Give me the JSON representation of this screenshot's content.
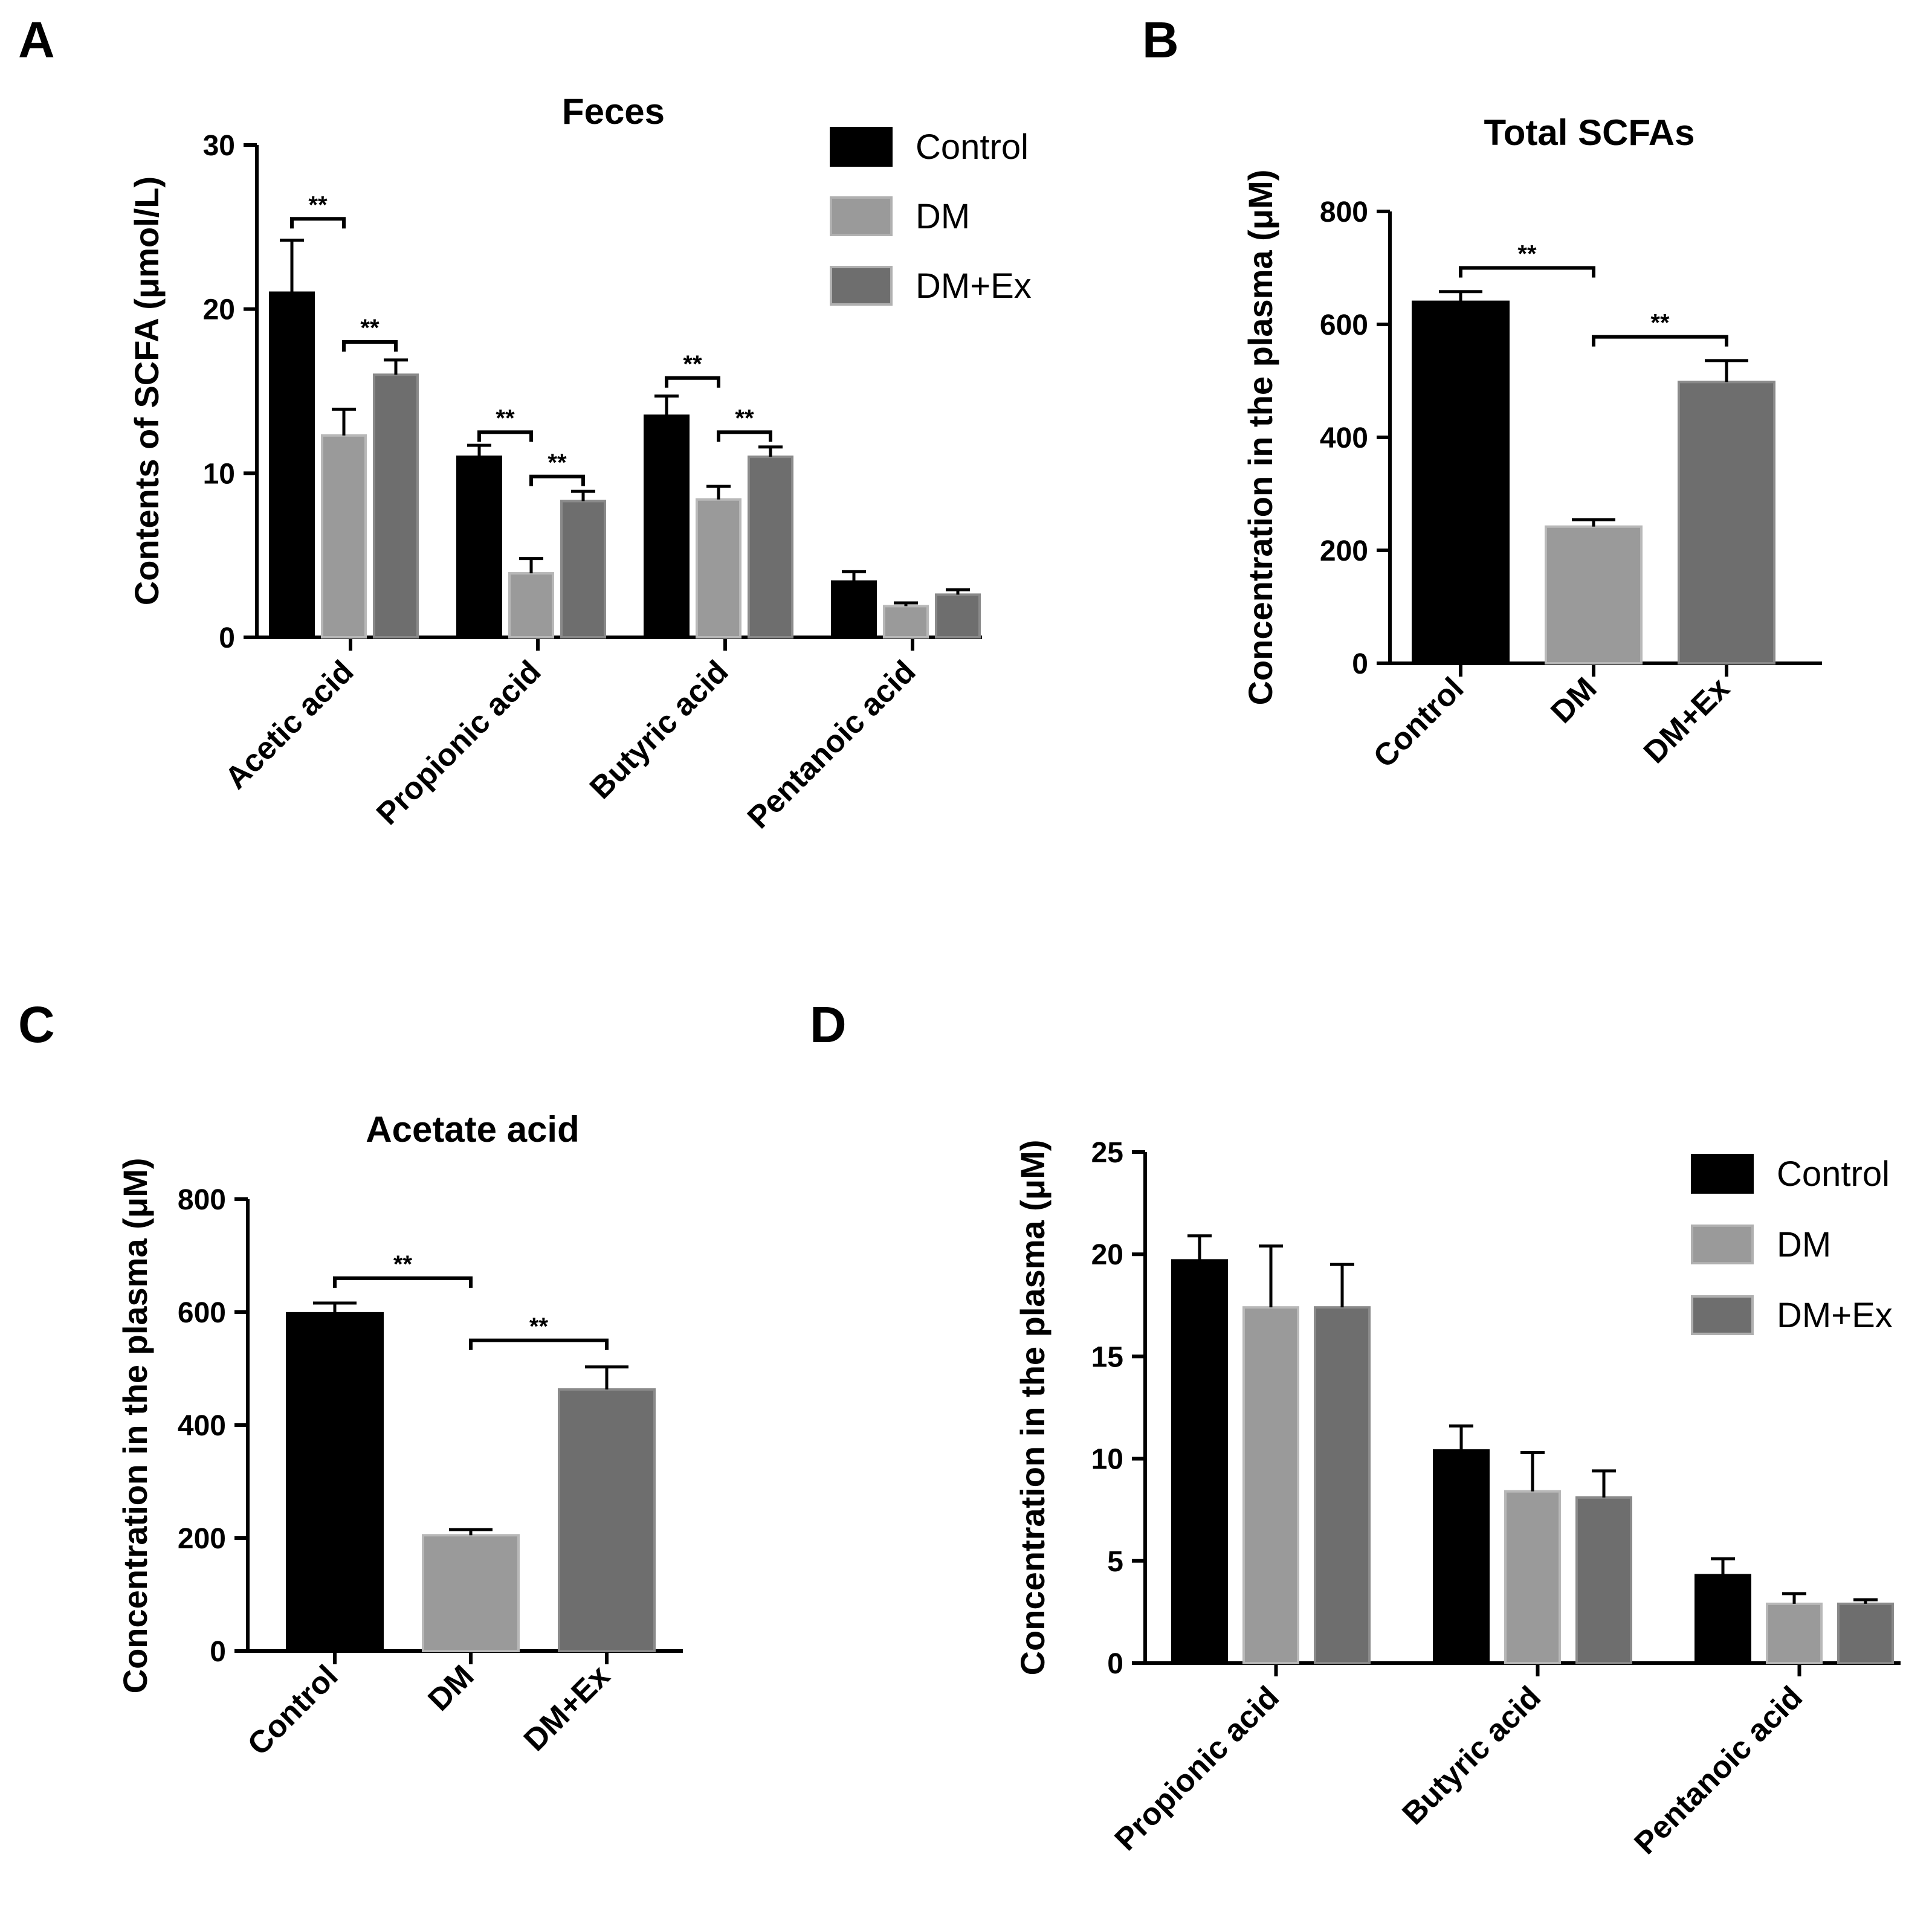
{
  "colors": {
    "Control": "#000000",
    "DM": "#9a9a9a",
    "DM+Ex": "#6e6e6e"
  },
  "legend": [
    "Control",
    "DM",
    "DM+Ex"
  ],
  "chart_data": [
    {
      "panel": "A",
      "type": "bar",
      "title": "Feces",
      "ylabel": "Contents of SCFA (μmol/L)",
      "xlabel": "",
      "ylim": [
        0,
        30
      ],
      "yticks": [
        0,
        10,
        20,
        30
      ],
      "categories": [
        "Acetic acid",
        "Propionic acid",
        "Butyric acid",
        "Pentanoic acid"
      ],
      "legend_position": "top-right",
      "series": [
        {
          "name": "Control",
          "values": [
            21.0,
            11.0,
            13.5,
            3.4
          ],
          "errors": [
            3.2,
            0.7,
            1.2,
            0.6
          ]
        },
        {
          "name": "DM",
          "values": [
            12.3,
            3.9,
            8.4,
            1.9
          ],
          "errors": [
            1.6,
            0.9,
            0.8,
            0.2
          ]
        },
        {
          "name": "DM+Ex",
          "values": [
            16.0,
            8.3,
            11.0,
            2.6
          ],
          "errors": [
            0.9,
            0.6,
            0.6,
            0.3
          ]
        }
      ],
      "significance": [
        {
          "category": 0,
          "from": 0,
          "to": 1,
          "y": 25.5,
          "label": "**"
        },
        {
          "category": 0,
          "from": 1,
          "to": 2,
          "y": 18.0,
          "label": "**"
        },
        {
          "category": 1,
          "from": 0,
          "to": 1,
          "y": 12.5,
          "label": "**"
        },
        {
          "category": 1,
          "from": 1,
          "to": 2,
          "y": 9.8,
          "label": "**"
        },
        {
          "category": 2,
          "from": 0,
          "to": 1,
          "y": 15.8,
          "label": "**"
        },
        {
          "category": 2,
          "from": 1,
          "to": 2,
          "y": 12.5,
          "label": "**"
        }
      ]
    },
    {
      "panel": "B",
      "type": "bar",
      "title": "Total SCFAs",
      "ylabel": "Concentration in the plasma (μM)",
      "xlabel": "",
      "ylim": [
        0,
        800
      ],
      "yticks": [
        0,
        200,
        400,
        600,
        800
      ],
      "categories": [
        "Control",
        "DM",
        "DM+Ex"
      ],
      "series": [
        {
          "name": "",
          "values": [
            640,
            242,
            498
          ],
          "errors": [
            18,
            12,
            38
          ]
        }
      ],
      "significance": [
        {
          "from": 0,
          "to": 1,
          "y": 700,
          "label": "**"
        },
        {
          "from": 1,
          "to": 2,
          "y": 578,
          "label": "**"
        }
      ]
    },
    {
      "panel": "C",
      "type": "bar",
      "title": "Acetate acid",
      "ylabel": "Concentration in the plasma (μM)",
      "xlabel": "",
      "ylim": [
        0,
        800
      ],
      "yticks": [
        0,
        200,
        400,
        600,
        800
      ],
      "categories": [
        "Control",
        "DM",
        "DM+Ex"
      ],
      "series": [
        {
          "name": "",
          "values": [
            598,
            205,
            463
          ],
          "errors": [
            18,
            10,
            40
          ]
        }
      ],
      "significance": [
        {
          "from": 0,
          "to": 1,
          "y": 660,
          "label": "**"
        },
        {
          "from": 1,
          "to": 2,
          "y": 550,
          "label": "**"
        }
      ]
    },
    {
      "panel": "D",
      "type": "bar",
      "title": "",
      "ylabel": "Concentration in the plasma (μM)",
      "xlabel": "",
      "ylim": [
        0,
        25
      ],
      "yticks": [
        0,
        5,
        10,
        15,
        20,
        25
      ],
      "categories": [
        "Propionic acid",
        "Butyric acid",
        "Pentanoic acid"
      ],
      "legend_position": "top-right",
      "series": [
        {
          "name": "Control",
          "values": [
            19.7,
            10.4,
            4.3
          ],
          "errors": [
            1.2,
            1.2,
            0.8
          ]
        },
        {
          "name": "DM",
          "values": [
            17.4,
            8.4,
            2.9
          ],
          "errors": [
            3.0,
            1.9,
            0.5
          ]
        },
        {
          "name": "DM+Ex",
          "values": [
            17.4,
            8.1,
            2.9
          ],
          "errors": [
            2.1,
            1.3,
            0.2
          ]
        }
      ],
      "significance": []
    }
  ]
}
